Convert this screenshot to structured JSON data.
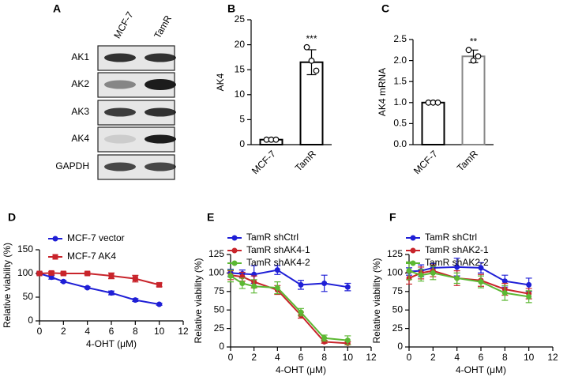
{
  "blot": {
    "panel": "A",
    "columns": [
      "MCF-7",
      "TamR"
    ],
    "rows": [
      "AK1",
      "AK2",
      "AK3",
      "AK4",
      "GAPDH"
    ]
  },
  "chart_data": [
    {
      "type": "bar",
      "panel": "B",
      "ylabel": "AK4",
      "categories": [
        "MCF-7",
        "TamR"
      ],
      "values": [
        1.0,
        16.5
      ],
      "errors": [
        0.2,
        2.5
      ],
      "points": [
        [
          1.0,
          1.0,
          1.0
        ],
        [
          19.5,
          16.8,
          14.8
        ]
      ],
      "annotations": [
        null,
        "***"
      ],
      "color": "#000000",
      "ylim": [
        0,
        25
      ],
      "yticks": [
        0,
        5,
        10,
        15,
        20,
        25
      ]
    },
    {
      "type": "bar",
      "panel": "C",
      "ylabel": "AK4 mRNA",
      "categories": [
        "MCF-7",
        "TamR"
      ],
      "values": [
        1.0,
        2.1
      ],
      "errors": [
        0.01,
        0.15
      ],
      "points": [
        [
          1.0,
          1.0,
          1.0
        ],
        [
          2.25,
          2.0,
          2.1
        ]
      ],
      "annotations": [
        null,
        "**"
      ],
      "colors": [
        "#000000",
        "#888888"
      ],
      "ylim": [
        0,
        2.5
      ],
      "yticks": [
        {
          "value": 0,
          "label": "0.0"
        },
        {
          "value": 0.5,
          "label": "0.5"
        },
        {
          "value": 1,
          "label": "1.0"
        },
        {
          "value": 1.5,
          "label": "1.5"
        },
        {
          "value": 2,
          "label": "2.0"
        },
        {
          "value": 2.5,
          "label": "2.5"
        }
      ]
    },
    {
      "type": "line",
      "panel": "D",
      "xlabel": "4-OHT (μM)",
      "ylabel": "Relative viability (%)",
      "x": [
        0,
        1,
        2,
        4,
        6,
        8,
        10
      ],
      "series": [
        {
          "name": "MCF-7 vector",
          "color": "#1f1fd6",
          "marker": "circle",
          "values": [
            100,
            92,
            83,
            70,
            59,
            44,
            35
          ],
          "errors": [
            3,
            4,
            2,
            2,
            4,
            3,
            2
          ]
        },
        {
          "name": "MCF-7 AK4",
          "color": "#c8242b",
          "marker": "square",
          "values": [
            100,
            101,
            100,
            100,
            95,
            89,
            76
          ],
          "errors": [
            2,
            3,
            3,
            3,
            6,
            7,
            4
          ]
        }
      ],
      "xlim": [
        0,
        12
      ],
      "xticks": [
        0,
        2,
        4,
        6,
        8,
        10,
        12
      ],
      "ylim": [
        0,
        150
      ],
      "yticks": [
        0,
        50,
        100,
        150
      ]
    },
    {
      "type": "line",
      "panel": "E",
      "xlabel": "4-OHT (μM)",
      "ylabel": "Relative viability (%)",
      "x": [
        0,
        1,
        2,
        4,
        6,
        8,
        10
      ],
      "series": [
        {
          "name": "TamR shCtrl",
          "color": "#1f1fd6",
          "marker": "circle",
          "values": [
            100,
            99,
            98,
            104,
            84,
            86,
            81
          ],
          "errors": [
            5,
            5,
            12,
            6,
            6,
            11,
            5
          ]
        },
        {
          "name": "TamR shAK4-1",
          "color": "#c8242b",
          "marker": "circle",
          "values": [
            97,
            95,
            88,
            77,
            43,
            7,
            5
          ],
          "errors": [
            6,
            6,
            8,
            6,
            4,
            2,
            2
          ]
        },
        {
          "name": "TamR shAK4-2",
          "color": "#5cb833",
          "marker": "circle",
          "values": [
            96,
            86,
            82,
            80,
            47,
            12,
            9
          ],
          "errors": [
            8,
            7,
            9,
            8,
            5,
            4,
            6
          ]
        }
      ],
      "xlim": [
        0,
        12
      ],
      "xticks": [
        0,
        2,
        4,
        6,
        8,
        10,
        12
      ],
      "ylim": [
        0,
        125
      ],
      "yticks": [
        0,
        25,
        50,
        75,
        100,
        125
      ]
    },
    {
      "type": "line",
      "panel": "F",
      "xlabel": "4-OHT (μM)",
      "ylabel": "Relative viability (%)",
      "x": [
        0,
        1,
        2,
        4,
        6,
        8,
        10
      ],
      "series": [
        {
          "name": "TamR shCtrl",
          "color": "#1f1fd6",
          "marker": "circle",
          "values": [
            102,
            103,
            107,
            108,
            107,
            89,
            84
          ],
          "errors": [
            5,
            8,
            6,
            12,
            7,
            8,
            9
          ]
        },
        {
          "name": "TamR shAK2-1",
          "color": "#c8242b",
          "marker": "circle",
          "values": [
            93,
            100,
            103,
            93,
            90,
            78,
            72
          ],
          "errors": [
            8,
            8,
            8,
            10,
            8,
            8,
            7
          ]
        },
        {
          "name": "TamR shAK2-2",
          "color": "#5cb833",
          "marker": "circle",
          "values": [
            103,
            97,
            100,
            93,
            88,
            73,
            68
          ],
          "errors": [
            12,
            8,
            9,
            7,
            8,
            10,
            8
          ]
        }
      ],
      "xlim": [
        0,
        12
      ],
      "xticks": [
        0,
        2,
        4,
        6,
        8,
        10,
        12
      ],
      "ylim": [
        0,
        125
      ],
      "yticks": [
        0,
        25,
        50,
        75,
        100,
        125
      ]
    }
  ]
}
